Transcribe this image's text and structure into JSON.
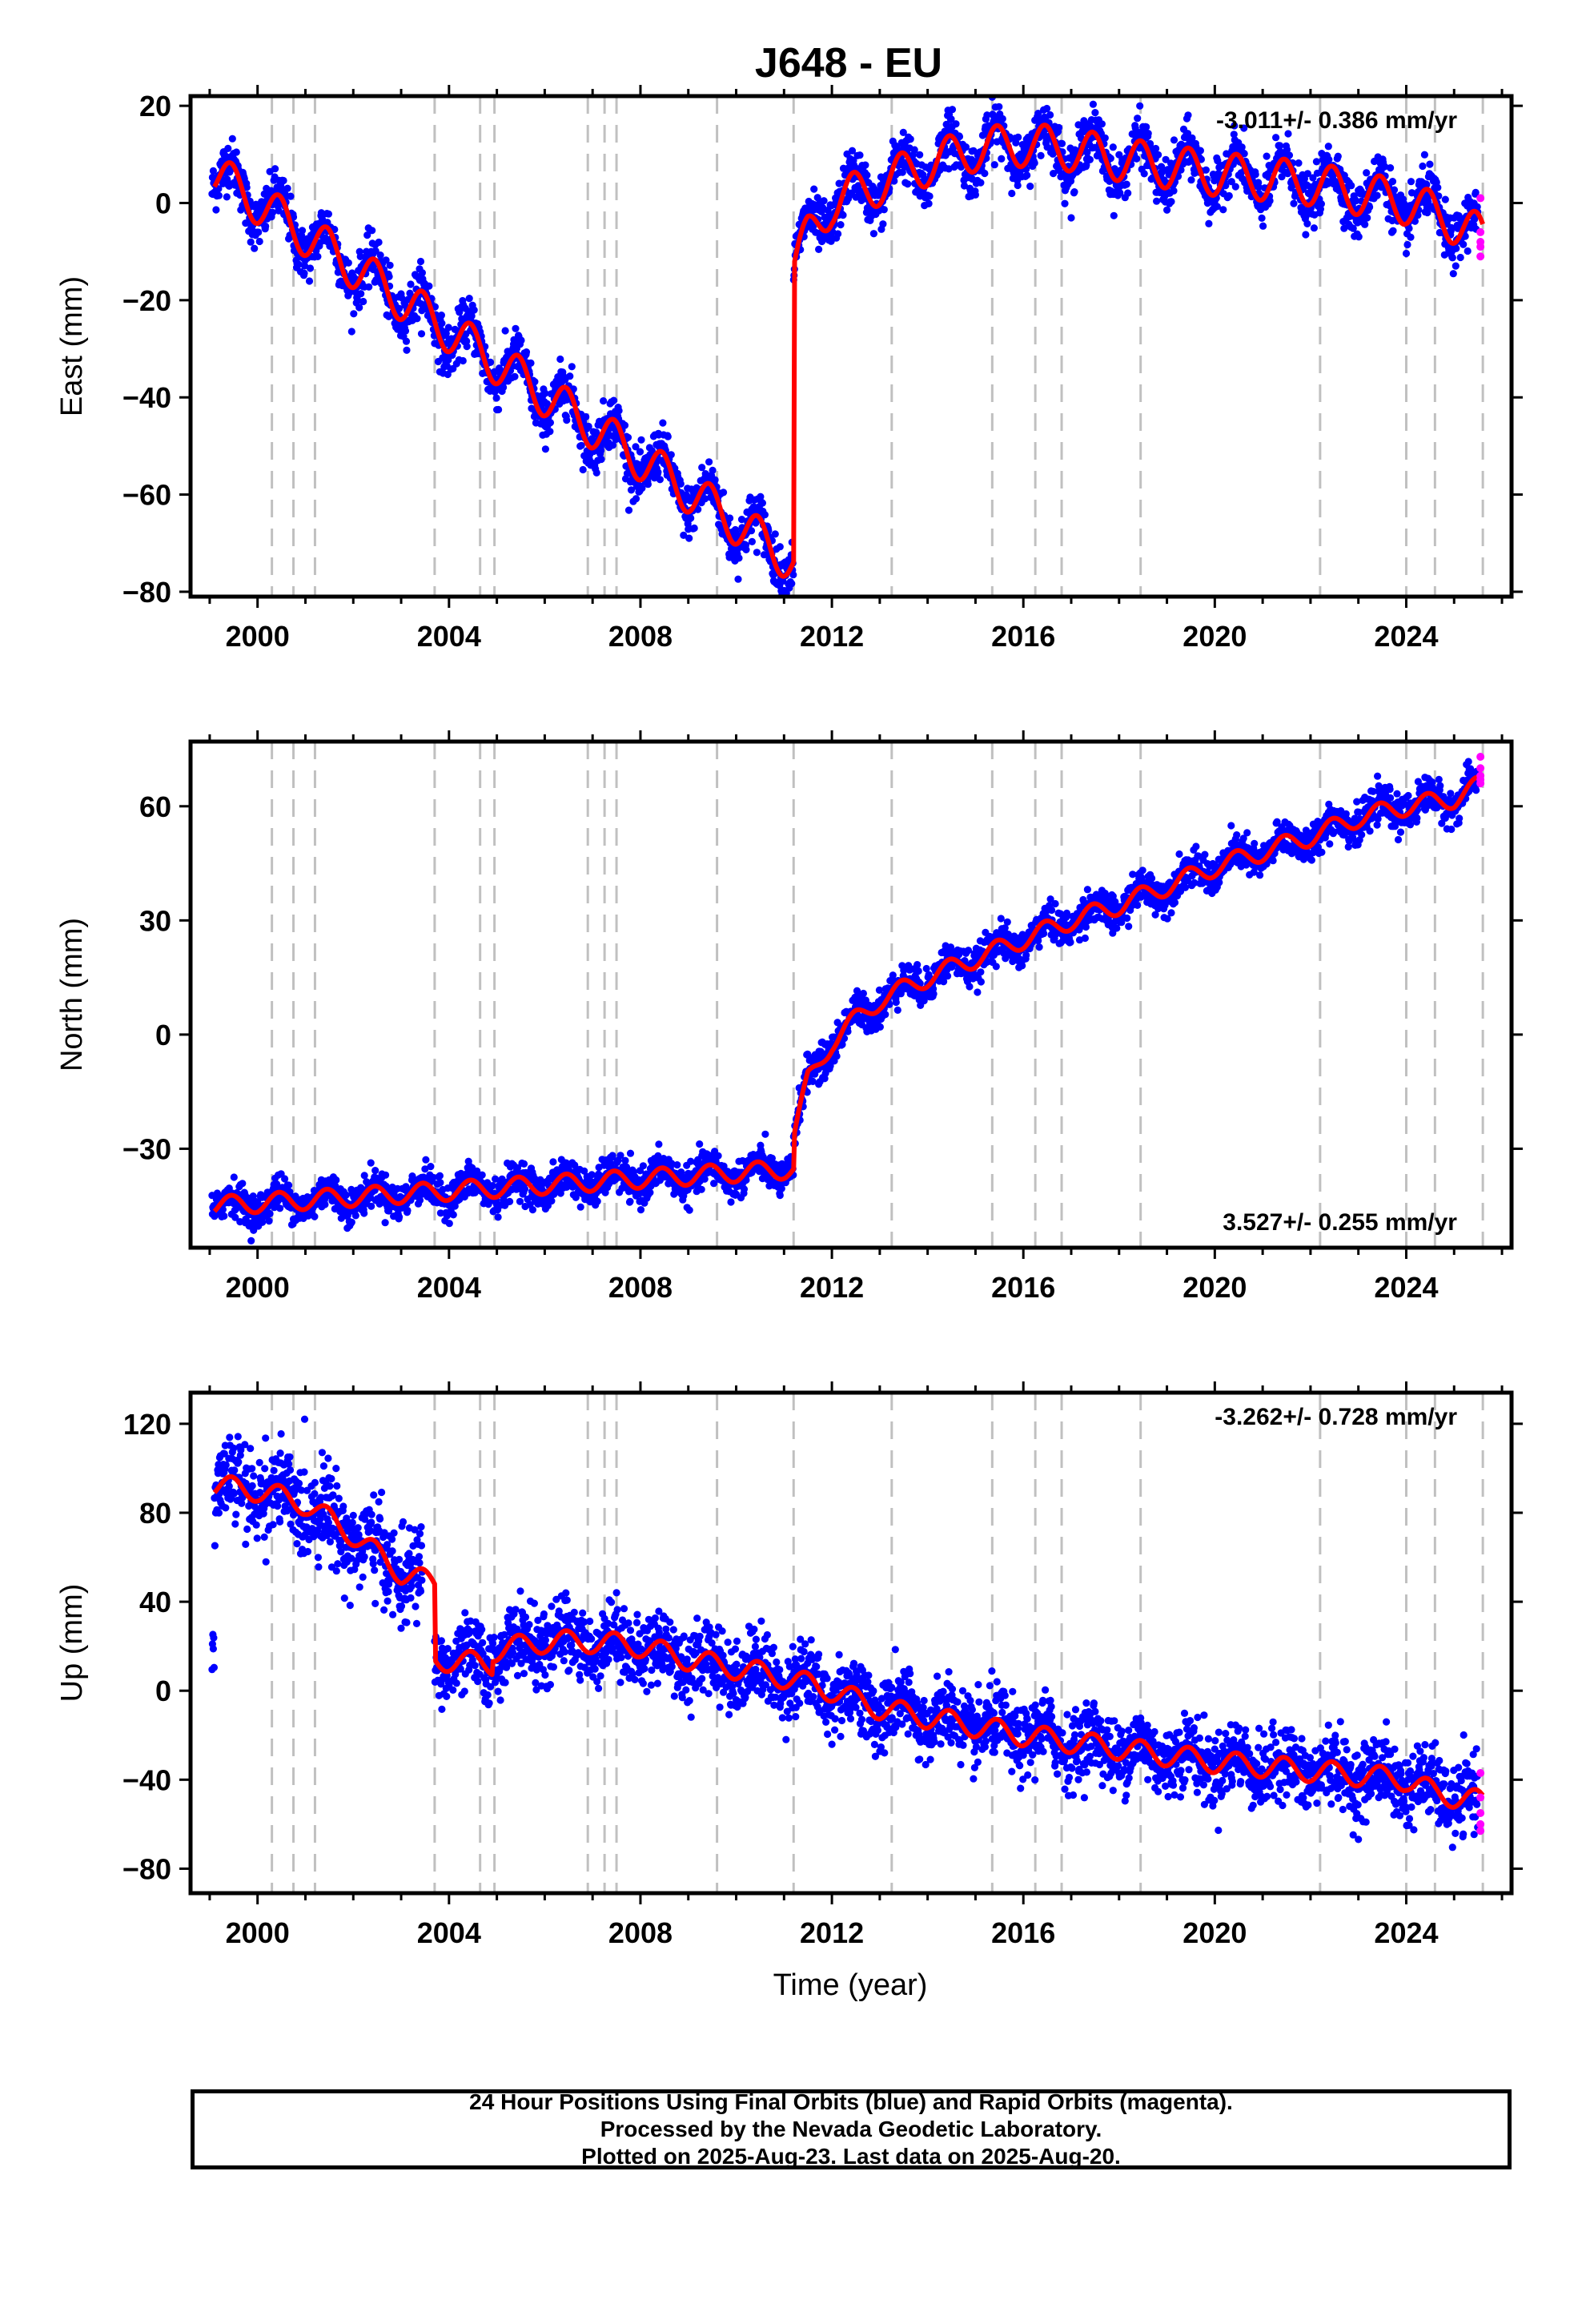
{
  "title": "J648 - EU",
  "xlabel": "Time (year)",
  "footer": {
    "line1": "24 Hour Positions Using Final Orbits (blue) and Rapid Orbits (magenta).",
    "line2": "Processed by the Nevada Geodetic Laboratory.",
    "line3": "Plotted on 2025-Aug-23. Last data on 2025-Aug-20."
  },
  "colors": {
    "final_points": "#0000ff",
    "rapid_points": "#ff00ff",
    "model_line": "#ff0000",
    "event_lines": "#c0c0c0"
  },
  "chart_data": [
    {
      "type": "scatter",
      "name": "east",
      "ylabel": "East (mm)",
      "rate_label": "-3.011+/- 0.386 mm/yr",
      "rate_position": "top-right",
      "xlim": [
        1998.6,
        2026.2
      ],
      "ylim": [
        -81,
        22
      ],
      "xticks": [
        2000,
        2004,
        2008,
        2012,
        2016,
        2020,
        2024
      ],
      "yticks": [
        -80,
        -60,
        -40,
        -20,
        0,
        20
      ],
      "event_years": [
        2000.3,
        2000.75,
        2001.2,
        2003.7,
        2004.65,
        2004.95,
        2006.9,
        2007.25,
        2007.5,
        2009.6,
        2011.2,
        2013.25,
        2015.35,
        2016.25,
        2016.8,
        2018.45,
        2022.2,
        2024.0,
        2024.6,
        2025.6
      ],
      "model": {
        "pre": {
          "x0": 1999.1,
          "y0": 6,
          "rate": -6.6,
          "end": 2011.2,
          "end_y": -72
        },
        "jump_to": -13,
        "post": [
          [
            2011.2,
            -13
          ],
          [
            2011.5,
            -7
          ],
          [
            2012.0,
            0
          ],
          [
            2012.5,
            2
          ],
          [
            2013.0,
            4
          ],
          [
            2014.0,
            8
          ],
          [
            2015.0,
            11
          ],
          [
            2016.0,
            12
          ],
          [
            2017.0,
            11
          ],
          [
            2018.0,
            9
          ],
          [
            2020.0,
            6
          ],
          [
            2022.0,
            4
          ],
          [
            2023.0,
            2
          ],
          [
            2024.0,
            0
          ],
          [
            2024.8,
            -3
          ],
          [
            2025.6,
            -7
          ]
        ],
        "seasonal_amp": 4.5,
        "scatter_sd": 2.6
      },
      "rapid": {
        "x": 2025.55,
        "values": [
          1,
          -6,
          -8,
          -9,
          -11
        ]
      }
    },
    {
      "type": "scatter",
      "name": "north",
      "ylabel": "North (mm)",
      "rate_label": "3.527+/- 0.255 mm/yr",
      "rate_position": "bottom-right",
      "xlim": [
        1998.6,
        2026.2
      ],
      "ylim": [
        -56,
        77
      ],
      "xticks": [
        2000,
        2004,
        2008,
        2012,
        2016,
        2020,
        2024
      ],
      "yticks": [
        -30,
        0,
        30,
        60
      ],
      "event_years": [
        2000.3,
        2000.75,
        2001.2,
        2003.7,
        2004.65,
        2004.95,
        2006.9,
        2007.25,
        2007.5,
        2009.6,
        2011.2,
        2013.25,
        2015.35,
        2016.25,
        2016.8,
        2018.45,
        2022.2,
        2024.0,
        2024.6,
        2025.6
      ],
      "model": {
        "pre": {
          "x0": 1999.1,
          "y0": -45,
          "rate": 0.8,
          "end": 2011.2,
          "end_y": -36
        },
        "jump_to": -27,
        "post": [
          [
            2011.2,
            -27
          ],
          [
            2011.5,
            -12
          ],
          [
            2012.0,
            -2
          ],
          [
            2012.5,
            4
          ],
          [
            2013.0,
            9
          ],
          [
            2014.0,
            15
          ],
          [
            2015.0,
            20
          ],
          [
            2016.0,
            25
          ],
          [
            2017.0,
            30
          ],
          [
            2018.0,
            34
          ],
          [
            2019.0,
            39
          ],
          [
            2020.0,
            44
          ],
          [
            2021.0,
            48
          ],
          [
            2022.0,
            52
          ],
          [
            2023.0,
            57
          ],
          [
            2024.0,
            60
          ],
          [
            2025.0,
            62
          ],
          [
            2025.6,
            66
          ]
        ],
        "seasonal_amp": 2.5,
        "scatter_sd": 2.3
      },
      "rapid": {
        "x": 2025.55,
        "values": [
          73,
          70,
          68,
          67,
          66
        ]
      }
    },
    {
      "type": "scatter",
      "name": "up",
      "ylabel": "Up (mm)",
      "rate_label": "-3.262+/- 0.728 mm/yr",
      "rate_position": "top-right",
      "xlim": [
        1998.6,
        2026.2
      ],
      "ylim": [
        -91,
        134
      ],
      "xticks": [
        2000,
        2004,
        2008,
        2012,
        2016,
        2020,
        2024
      ],
      "yticks": [
        -80,
        -40,
        0,
        40,
        80,
        120
      ],
      "event_years": [
        2000.3,
        2000.75,
        2001.2,
        2003.7,
        2004.65,
        2004.95,
        2006.9,
        2007.25,
        2007.5,
        2009.6,
        2011.2,
        2013.25,
        2015.35,
        2016.25,
        2016.8,
        2018.45,
        2022.2,
        2024.0,
        2024.6,
        2025.6
      ],
      "model": {
        "segments": [
          [
            [
              1999.1,
              92
            ],
            [
              2000.0,
              90
            ],
            [
              2001.0,
              84
            ],
            [
              2002.0,
              70
            ],
            [
              2003.0,
              53
            ],
            [
              2003.7,
              48
            ]
          ],
          [
            [
              2003.7,
              14
            ],
            [
              2004.9,
              12
            ]
          ],
          [
            [
              2004.9,
              18
            ],
            [
              2006.0,
              22
            ],
            [
              2007.0,
              22
            ],
            [
              2008.0,
              20
            ],
            [
              2009.0,
              14
            ],
            [
              2010.0,
              10
            ],
            [
              2011.0,
              6
            ],
            [
              2012.0,
              0
            ],
            [
              2013.0,
              -8
            ],
            [
              2014.0,
              -12
            ],
            [
              2016.0,
              -20
            ],
            [
              2018.0,
              -26
            ],
            [
              2020.0,
              -32
            ],
            [
              2022.0,
              -36
            ],
            [
              2024.0,
              -40
            ],
            [
              2024.6,
              -46
            ],
            [
              2025.6,
              -50
            ]
          ]
        ],
        "seasonal_amp": 5,
        "scatter_sd": 8,
        "scatter_sd_early": 10
      },
      "rapid": {
        "x": 2025.55,
        "values": [
          -37,
          -48,
          -55,
          -60,
          -63
        ]
      }
    }
  ]
}
